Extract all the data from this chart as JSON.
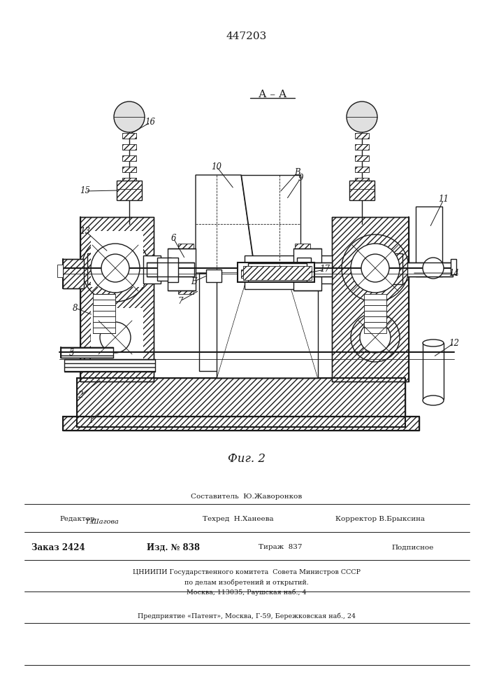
{
  "patent_number": "447203",
  "figure_label": "Фиг. 2",
  "section_label": "А – А",
  "bg": "#ffffff",
  "lc": "#1a1a1a",
  "tc": "#1a1a1a",
  "hatch_color": "#444444",
  "footer": {
    "composer_label": "Составитель",
    "composer_name": "Ю.Жаворонков",
    "editor_label": "Редактор",
    "editor_name": "Т.Шагова",
    "techred_label": "Техред",
    "techred_name": "Н.Ханеева",
    "corrector_label": "Корректор",
    "corrector_name": "В.Брыксина",
    "order_label": "Заказ",
    "order_value": "2424",
    "izd_label": "Изд. №",
    "izd_value": "838",
    "tirazh_label": "Тираж",
    "tirazh_value": "837",
    "podpisnoe": "Подписное",
    "tsniipi_line1": "ЦНИИПИ Государственного комитета  Совета Министров СССР",
    "tsniipi_line2": "по делам изобретений и открытий.",
    "tsniipi_line3": "Москва, 113035, Раушская наб., 4",
    "predpriyatie": "Предприятие «Патент», Москва, Г-59, Бережковская наб., 24"
  }
}
